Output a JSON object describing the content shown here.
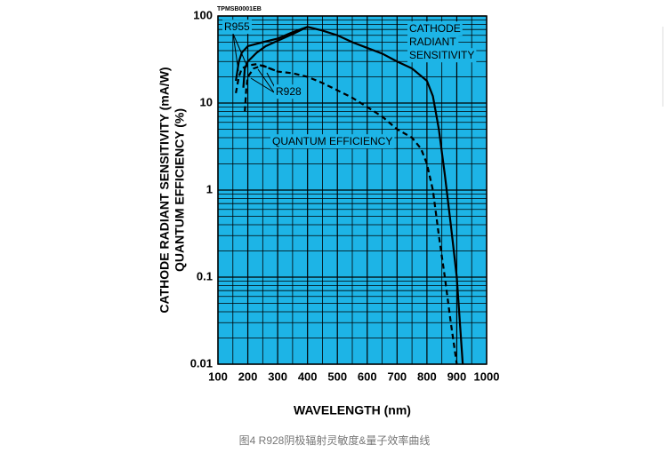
{
  "chart_data": {
    "type": "line",
    "code": "TPMSB0001EB",
    "x_label": "WAVELENGTH (nm)",
    "y_label": [
      "CATHODE RADIANT SENSITIVITY (mA/W)",
      "QUANTUM EFFICIENCY (%)"
    ],
    "caption": "图4 R928阴极辐射灵敏度&量子效率曲线",
    "annotations": {
      "r955": "R955",
      "r928": "R928",
      "qe": "QUANTUM EFFICIENCY",
      "crs": [
        "CATHODE",
        "RADIANT",
        "SENSITIVITY"
      ]
    },
    "log_y": true,
    "grid": true,
    "background": "#1db4e6",
    "xlim": [
      100,
      1000
    ],
    "xticks": [
      100,
      200,
      300,
      400,
      500,
      600,
      700,
      800,
      900,
      1000
    ],
    "x_minor_gridlines": [
      150,
      250,
      350,
      450,
      550,
      650,
      750,
      850,
      950
    ],
    "ylim": [
      0.01,
      100
    ],
    "yticks": [
      0.01,
      0.1,
      1,
      10,
      100
    ],
    "y_minor_gridlines": [
      0.02,
      0.03,
      0.04,
      0.05,
      0.06,
      0.07,
      0.08,
      0.09,
      0.2,
      0.3,
      0.4,
      0.5,
      0.6,
      0.7,
      0.8,
      0.9,
      2,
      3,
      4,
      5,
      6,
      7,
      8,
      9,
      20,
      30,
      40,
      50,
      60,
      70,
      80,
      90
    ],
    "series": [
      {
        "style": "solid",
        "color": "#000000",
        "x": [
          160,
          170,
          180,
          200,
          250,
          300,
          350,
          400,
          450,
          500,
          550,
          600,
          650,
          700,
          750,
          800,
          820,
          840,
          860,
          880,
          900,
          920
        ],
        "values": [
          18,
          30,
          38,
          45,
          50,
          55,
          65,
          75,
          68,
          60,
          50,
          43,
          37,
          30,
          25,
          18,
          12,
          5,
          1.5,
          0.4,
          0.1,
          0.01
        ]
      },
      {
        "style": "solid",
        "color": "#000000",
        "x": [
          185,
          190,
          200,
          230,
          260,
          300,
          350,
          400
        ],
        "values": [
          15,
          25,
          30,
          38,
          45,
          52,
          62,
          75
        ]
      },
      {
        "style": "dashed",
        "color": "#000000",
        "x": [
          160,
          170,
          180,
          200,
          230,
          260,
          300,
          350,
          400,
          450,
          500,
          550,
          600,
          650,
          700,
          750,
          780,
          800,
          820,
          840,
          860,
          880,
          900
        ],
        "values": [
          13,
          20,
          25,
          27,
          28,
          26,
          23,
          22,
          20,
          17,
          14,
          11.5,
          9,
          7,
          5,
          4,
          3,
          2,
          1,
          0.3,
          0.1,
          0.03,
          0.01
        ]
      },
      {
        "style": "dashed",
        "color": "#000000",
        "x": [
          190,
          195,
          200,
          220,
          250,
          300
        ],
        "values": [
          8,
          15,
          20,
          25,
          27,
          23
        ]
      }
    ]
  }
}
